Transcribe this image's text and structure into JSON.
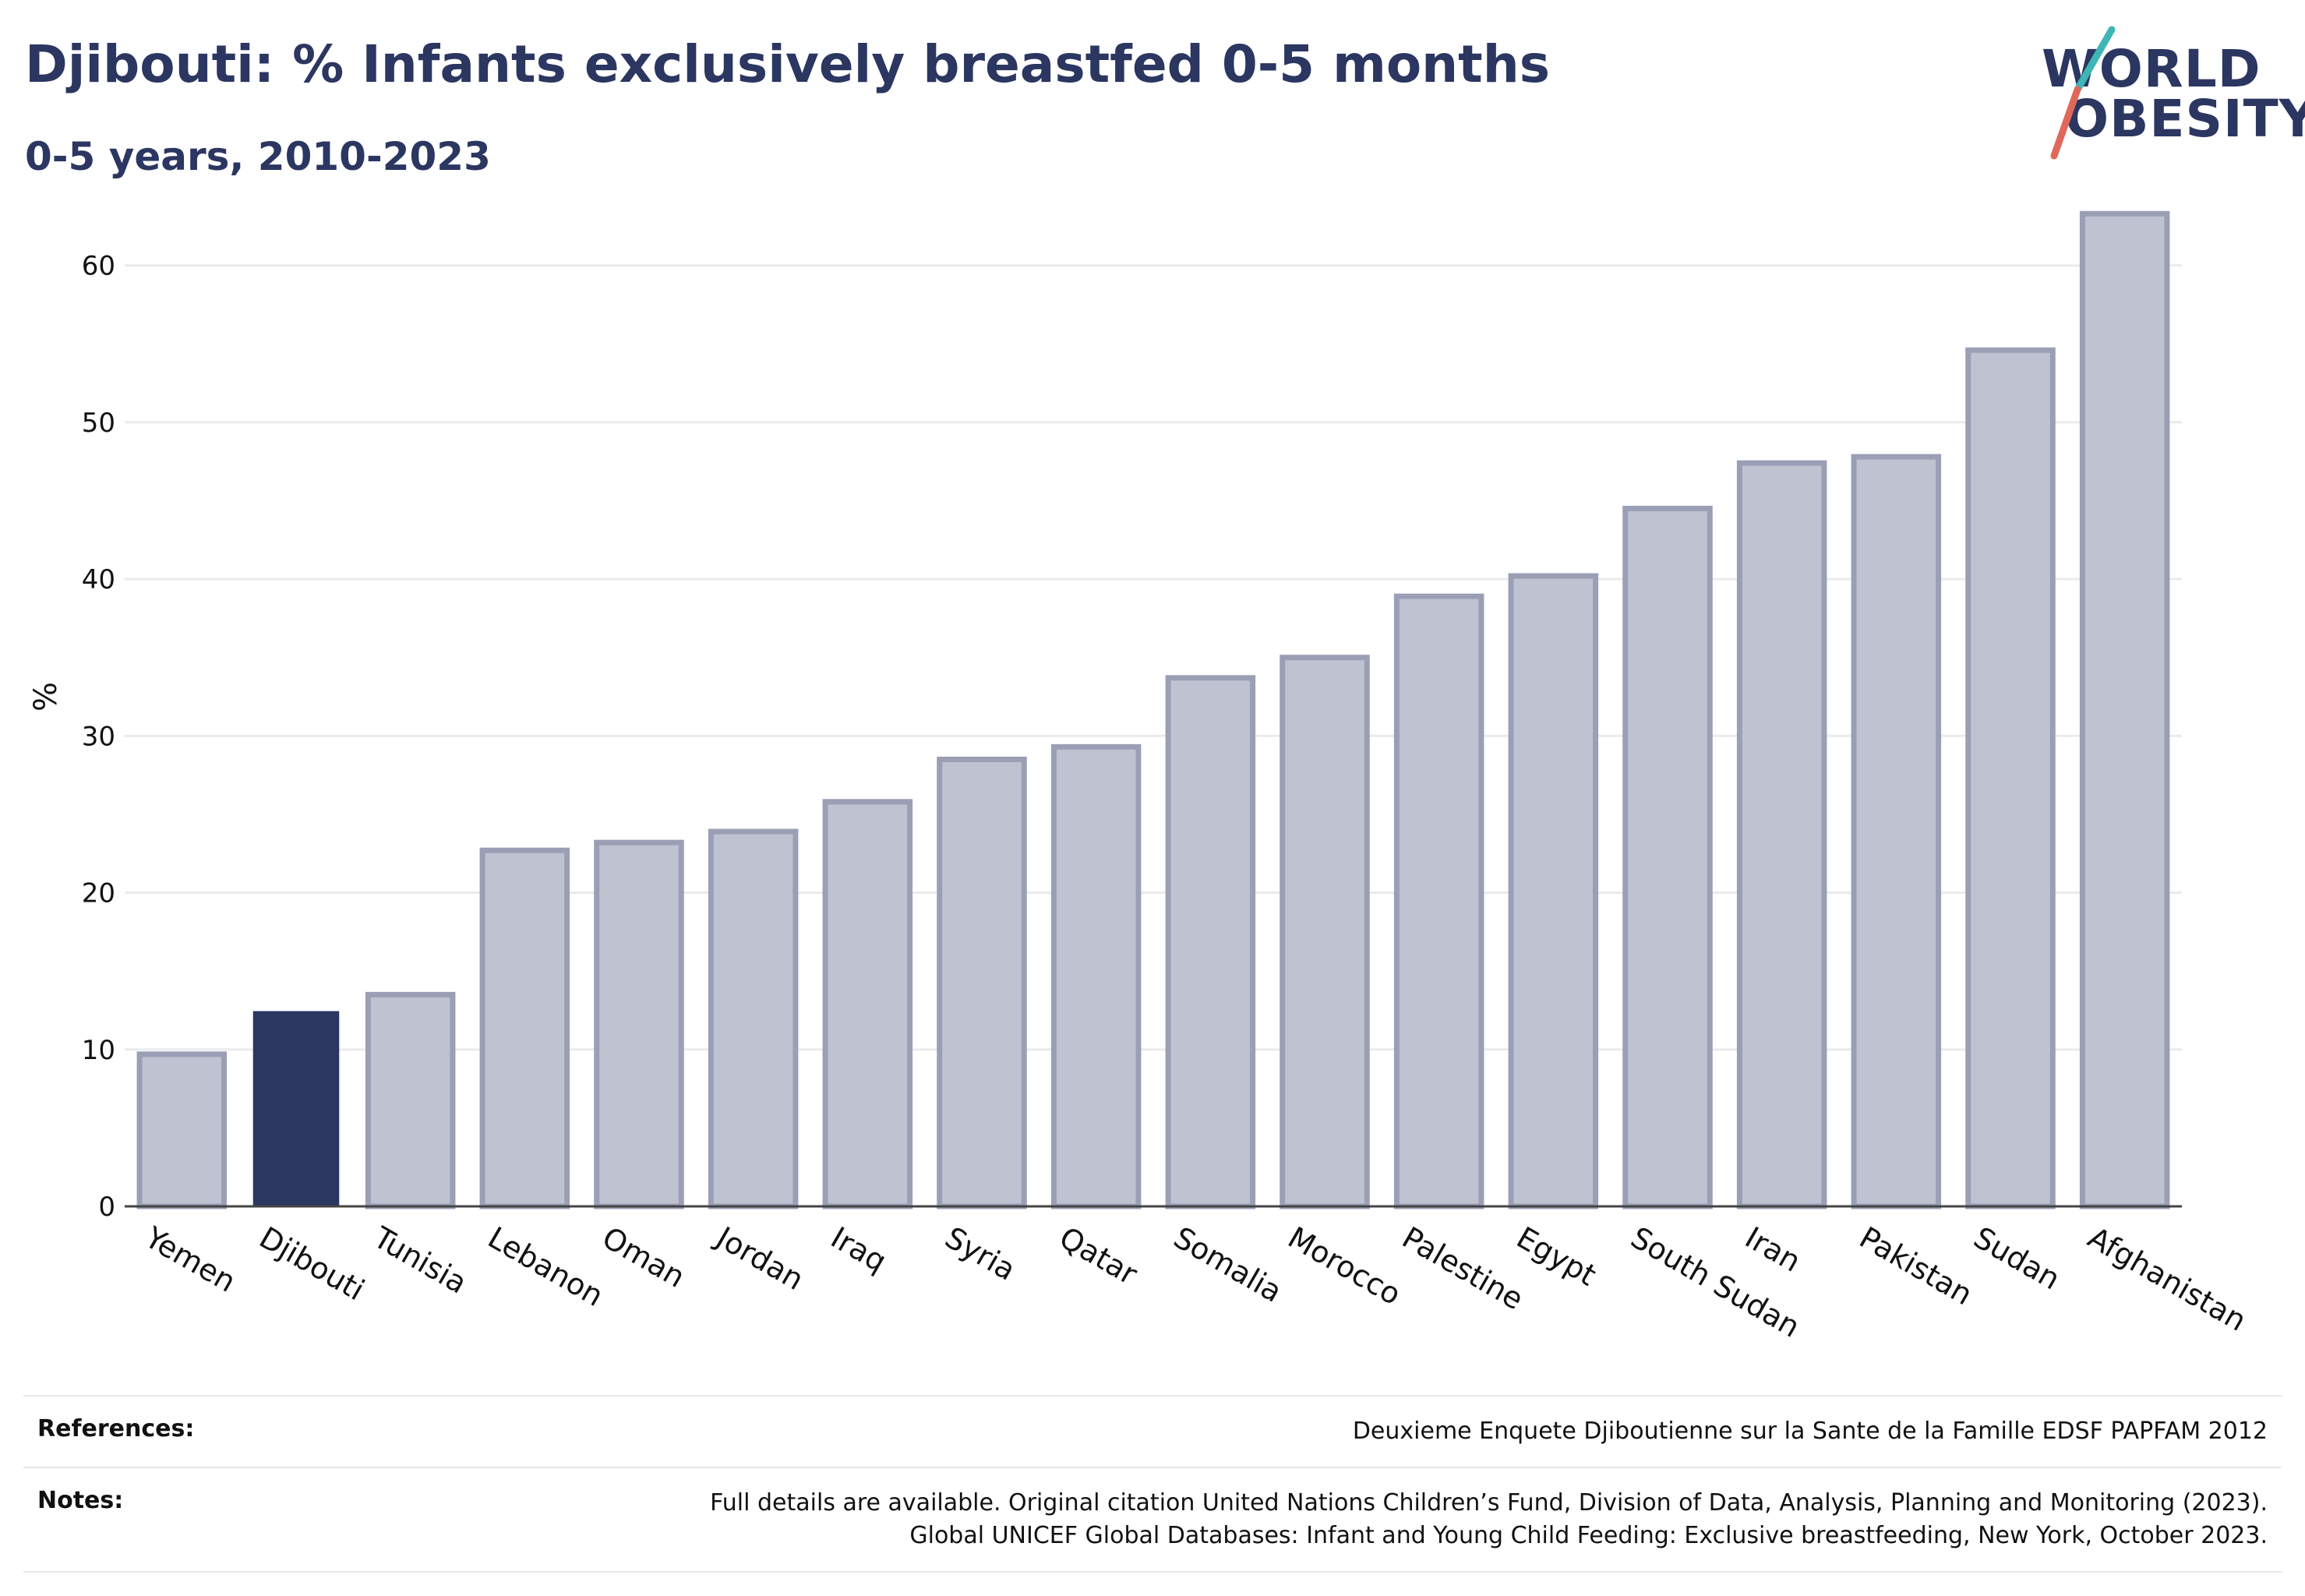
{
  "header": {
    "title": "Djibouti: % Infants exclusively breastfed 0-5 months",
    "subtitle": "0-5 years, 2010-2023"
  },
  "logo": {
    "line1": "WORLD",
    "line2": "OBESITY"
  },
  "colors": {
    "highlight": "#2b3661",
    "bar": "#bfc2d0",
    "bar_edge": "#9a9fb6",
    "grid": "#ebebeb"
  },
  "chart_data": {
    "type": "bar",
    "ylabel": "%",
    "ylim": [
      0,
      65
    ],
    "yticks": [
      0,
      10,
      20,
      30,
      40,
      50,
      60
    ],
    "highlight": "Djibouti",
    "categories": [
      "Yemen",
      "Djibouti",
      "Tunisia",
      "Lebanon",
      "Oman",
      "Jordan",
      "Iraq",
      "Syria",
      "Qatar",
      "Somalia",
      "Morocco",
      "Palestine",
      "Egypt",
      "South Sudan",
      "Iran",
      "Pakistan",
      "Sudan",
      "Afghanistan"
    ],
    "values": [
      9.7,
      12.4,
      13.5,
      22.7,
      23.2,
      23.9,
      25.8,
      28.5,
      29.3,
      33.7,
      35.0,
      38.9,
      40.2,
      44.5,
      47.4,
      47.8,
      54.6,
      63.3
    ]
  },
  "references": {
    "label": "References:",
    "text": "Deuxieme Enquete Djiboutienne sur la Sante de la Famille EDSF PAPFAM 2012"
  },
  "notes": {
    "label": "Notes:",
    "line1": "Full details are available. Original citation United Nations Children’s Fund, Division of Data, Analysis, Planning and Monitoring (2023).",
    "line2": "Global UNICEF Global Databases: Infant and Young Child Feeding: Exclusive breastfeeding, New York, October 2023."
  }
}
